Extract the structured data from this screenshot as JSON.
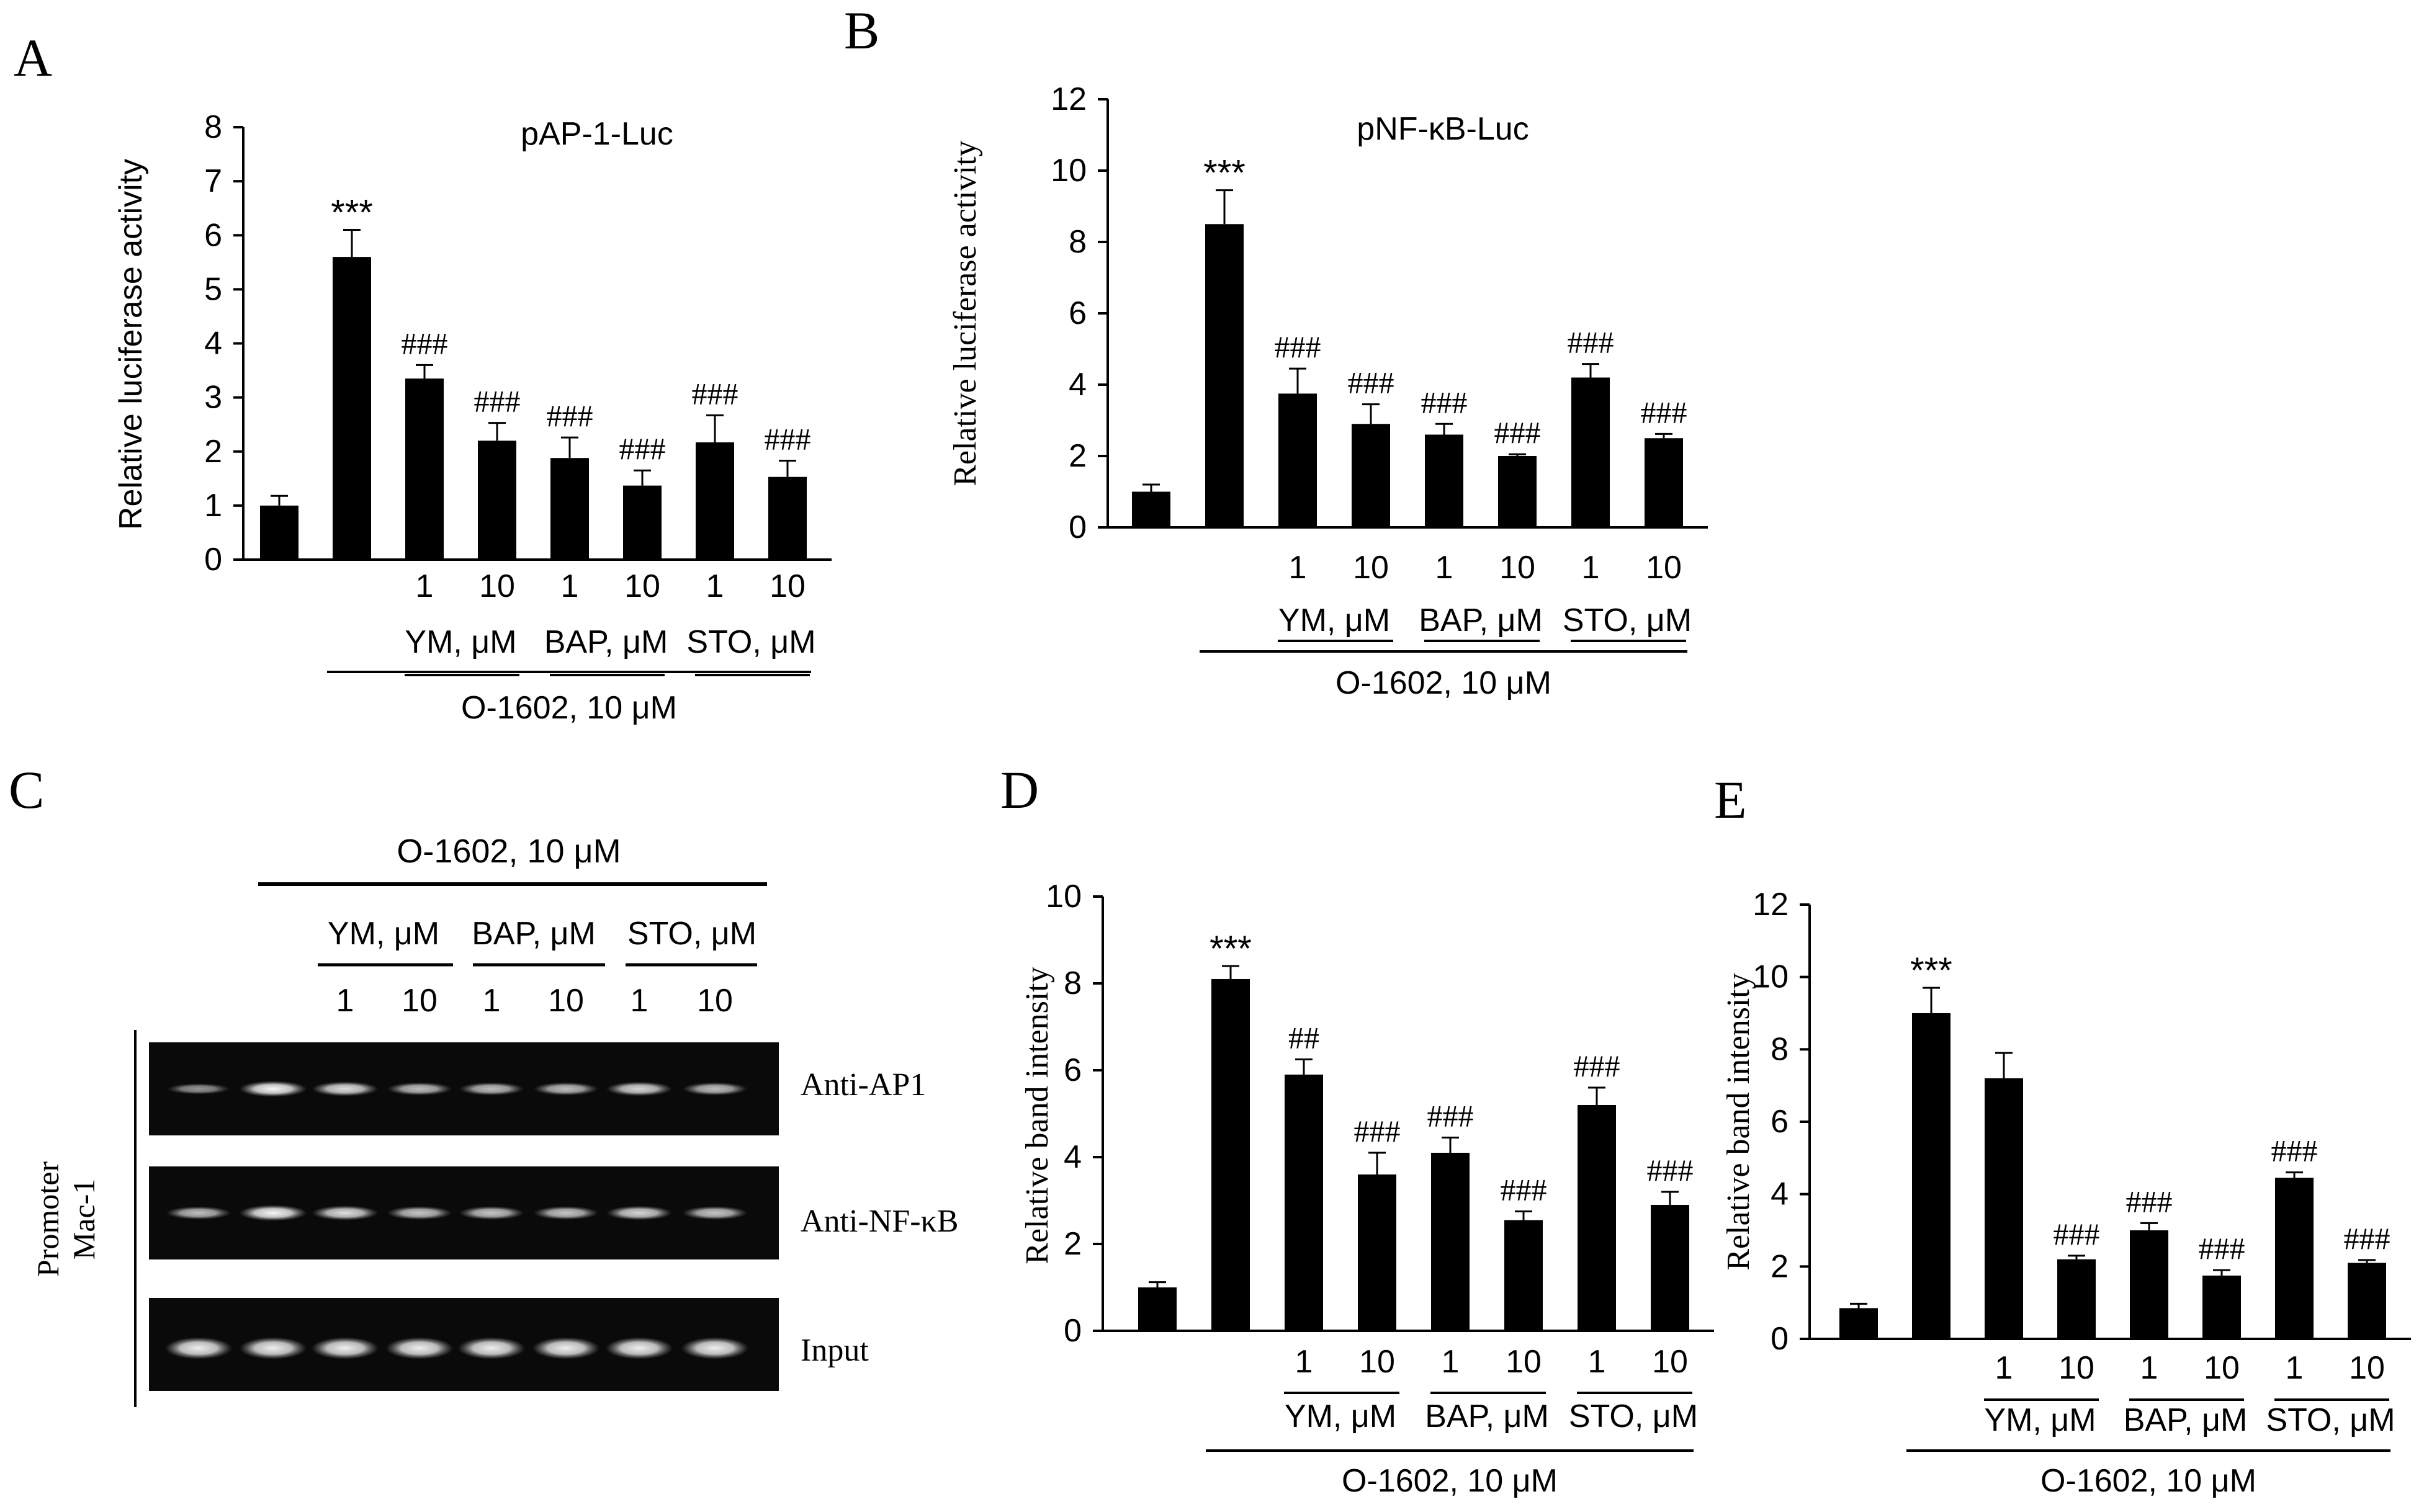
{
  "panel_letters": [
    "A",
    "B",
    "C",
    "D",
    "E"
  ],
  "chart_data": [
    {
      "panel": "A",
      "type": "bar",
      "title": "pAP-1-Luc",
      "ylabel": "Relative luciferase activity",
      "ylim": [
        0,
        8
      ],
      "yticks": [
        0,
        1,
        2,
        3,
        4,
        5,
        6,
        7,
        8
      ],
      "values": [
        1.0,
        5.6,
        3.35,
        2.2,
        1.88,
        1.37,
        2.17,
        1.53
      ],
      "errors": [
        0.18,
        0.5,
        0.25,
        0.33,
        0.38,
        0.28,
        0.5,
        0.3
      ],
      "annotations": [
        "",
        "***",
        "###",
        "###",
        "###",
        "###",
        "###",
        "###"
      ],
      "dose_labels": [
        "",
        "",
        "1",
        "10",
        "1",
        "10",
        "1",
        "10"
      ],
      "group_labels": [
        "YM, μM",
        "BAP, μM",
        "STO, μM"
      ],
      "treatment_label": "O-1602, 10 μM"
    },
    {
      "panel": "B",
      "type": "bar",
      "title": "pNF-κB-Luc",
      "ylabel": "Relative luciferase activity",
      "ylim": [
        0,
        12
      ],
      "yticks": [
        0,
        2,
        4,
        6,
        8,
        10,
        12
      ],
      "values": [
        1.0,
        8.5,
        3.75,
        2.9,
        2.6,
        2.0,
        4.2,
        2.5
      ],
      "errors": [
        0.2,
        0.95,
        0.7,
        0.55,
        0.3,
        0.05,
        0.38,
        0.12
      ],
      "annotations": [
        "",
        "***",
        "###",
        "###",
        "###",
        "###",
        "###",
        "###"
      ],
      "dose_labels": [
        "",
        "",
        "1",
        "10",
        "1",
        "10",
        "1",
        "10"
      ],
      "group_labels": [
        "YM, μM",
        "BAP, μM",
        "STO, μM"
      ],
      "treatment_label": "O-1602, 10 μM"
    },
    {
      "panel": "D",
      "type": "bar",
      "title": "",
      "ylabel": "Relative band intensity",
      "ylim": [
        0,
        10
      ],
      "yticks": [
        0,
        2,
        4,
        6,
        8,
        10
      ],
      "values": [
        1.0,
        8.1,
        5.9,
        3.6,
        4.1,
        2.55,
        5.2,
        2.9
      ],
      "errors": [
        0.12,
        0.3,
        0.35,
        0.5,
        0.35,
        0.2,
        0.4,
        0.3
      ],
      "annotations": [
        "",
        "***",
        "##",
        "###",
        "###",
        "###",
        "###",
        "###"
      ],
      "dose_labels": [
        "",
        "",
        "1",
        "10",
        "1",
        "10",
        "1",
        "10"
      ],
      "group_labels": [
        "YM, μM",
        "BAP, μM",
        "STO, μM"
      ],
      "treatment_label": "O-1602, 10 μM"
    },
    {
      "panel": "E",
      "type": "bar",
      "title": "",
      "ylabel": "Relative band intensity",
      "ylim": [
        0,
        12
      ],
      "yticks": [
        0,
        2,
        4,
        6,
        8,
        10,
        12
      ],
      "values": [
        0.85,
        9.0,
        7.2,
        2.2,
        3.0,
        1.75,
        4.45,
        2.1
      ],
      "errors": [
        0.12,
        0.7,
        0.7,
        0.1,
        0.2,
        0.15,
        0.15,
        0.08
      ],
      "annotations": [
        "",
        "***",
        "",
        "###",
        "###",
        "###",
        "###",
        "###"
      ],
      "dose_labels": [
        "",
        "",
        "1",
        "10",
        "1",
        "10",
        "1",
        "10"
      ],
      "group_labels": [
        "YM, μM",
        "BAP, μM",
        "STO, μM"
      ],
      "treatment_label": "O-1602, 10 μM"
    }
  ],
  "blot": {
    "treatment_label": "O-1602, 10 μM",
    "group_labels": [
      "YM, μM",
      "BAP, μM",
      "STO, μM"
    ],
    "dose_labels": [
      "1",
      "10",
      "1",
      "10",
      "1",
      "10"
    ],
    "side_label_line1": "Promoter",
    "side_label_line2": "Mac-1",
    "rows": [
      {
        "label": "Anti-AP1",
        "intensities": [
          0.35,
          0.95,
          0.8,
          0.6,
          0.6,
          0.6,
          0.75,
          0.6
        ]
      },
      {
        "label": "Anti-NF-κB",
        "intensities": [
          0.6,
          0.95,
          0.8,
          0.65,
          0.65,
          0.65,
          0.75,
          0.65
        ]
      },
      {
        "label": "Input",
        "intensities": [
          0.9,
          0.9,
          0.9,
          0.9,
          0.9,
          0.9,
          0.9,
          0.9
        ]
      }
    ]
  }
}
